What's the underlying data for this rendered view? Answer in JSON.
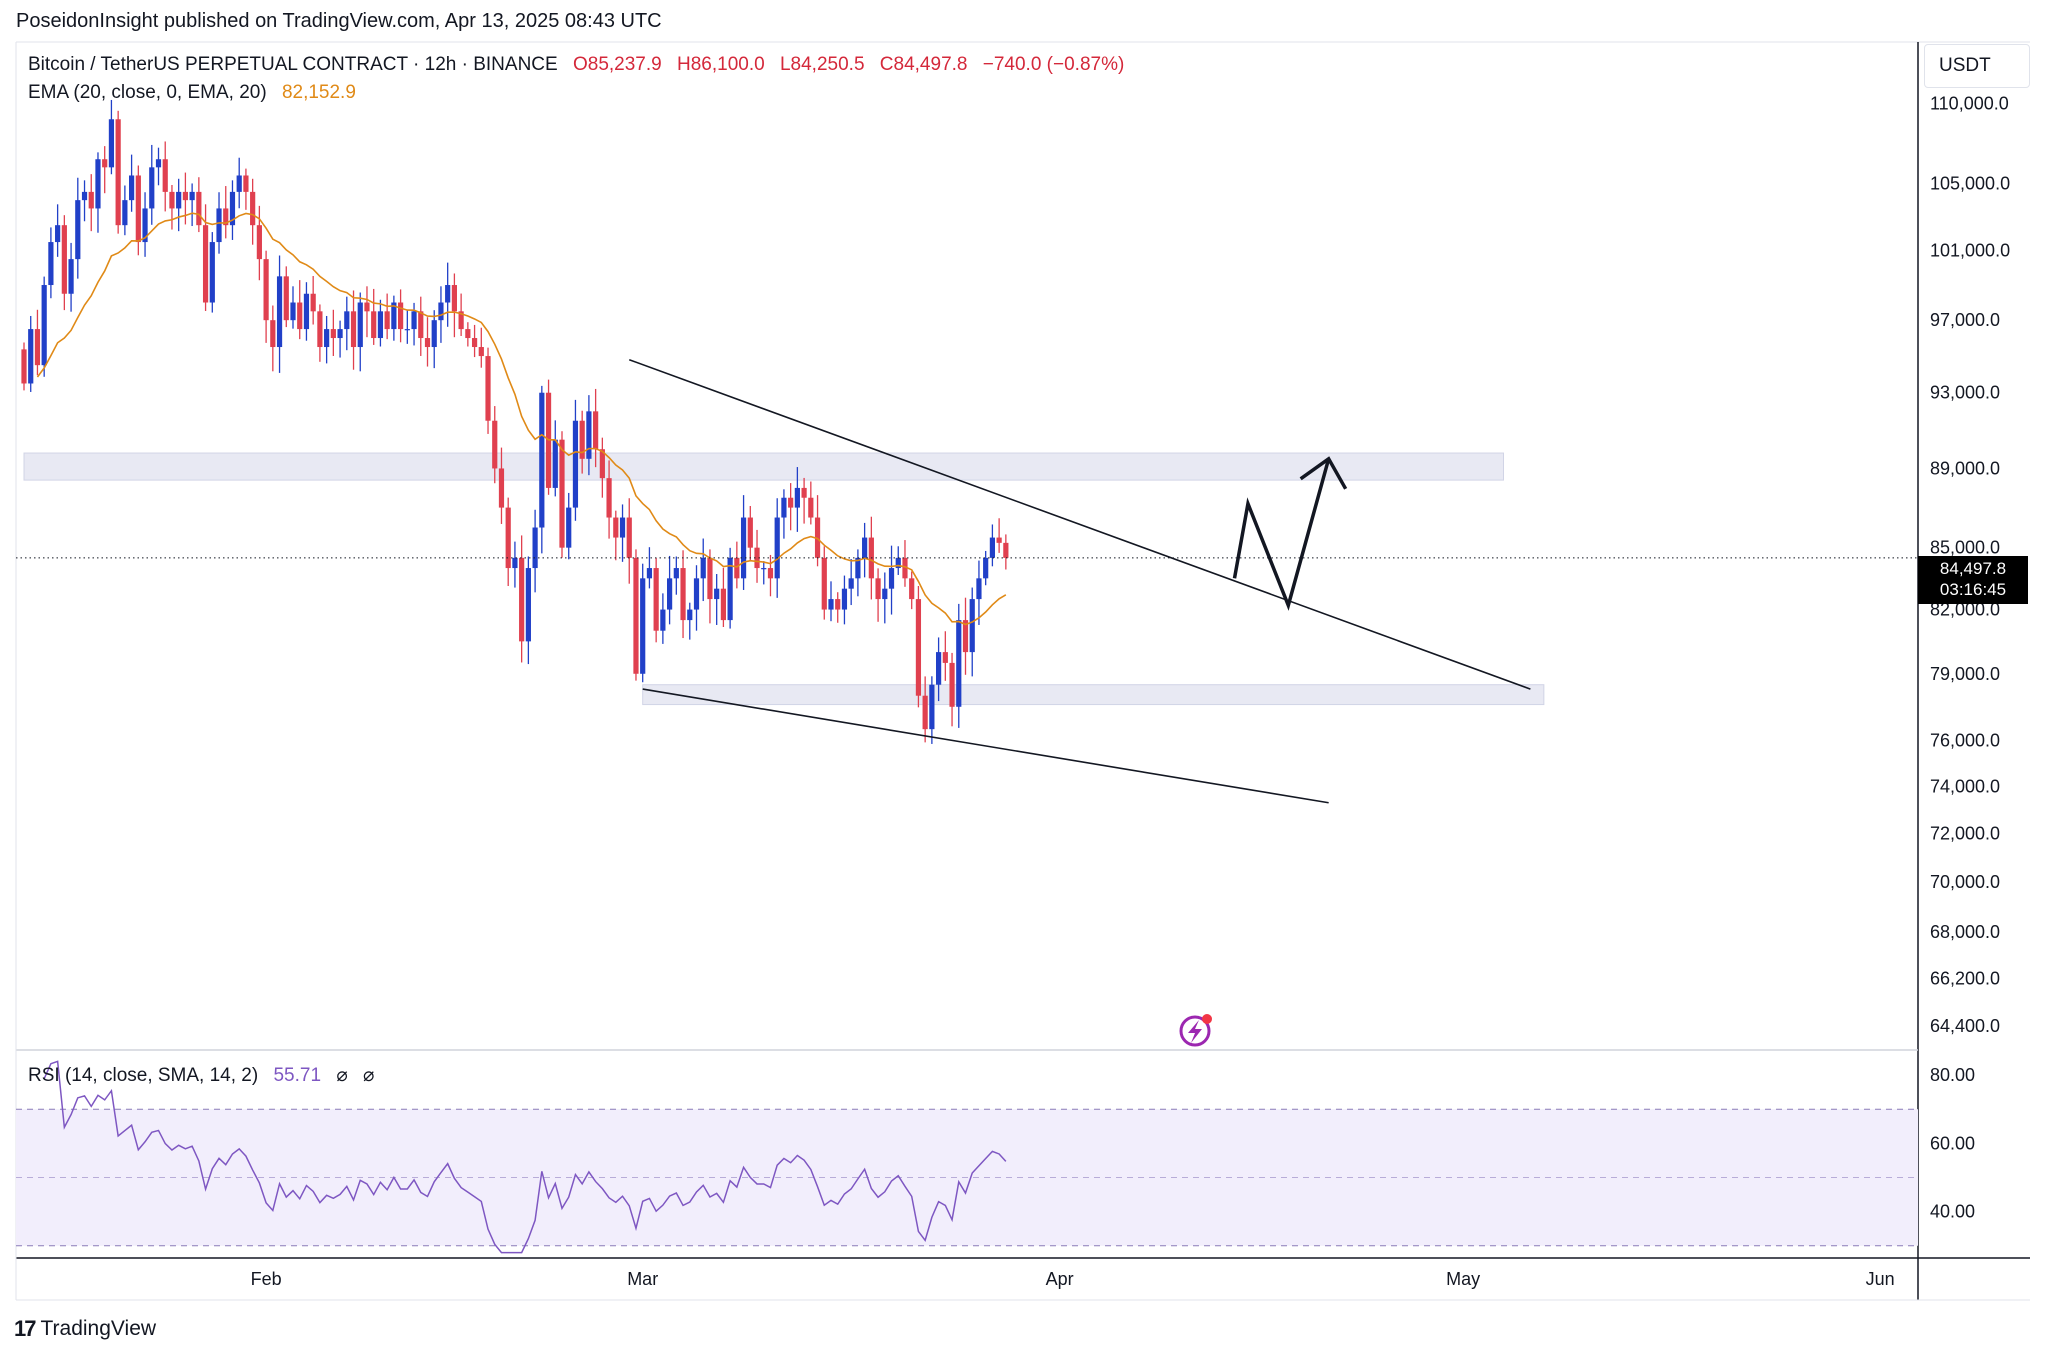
{
  "header": {
    "published": "PoseidonInsight published on TradingView.com, Apr 13, 2025 08:43 UTC"
  },
  "legend": {
    "symbol": "Bitcoin / TetherUS PERPETUAL CONTRACT · 12h · BINANCE",
    "open": "O85,237.9",
    "high": "H86,100.0",
    "low": "L84,250.5",
    "close": "C84,497.8",
    "change": "−740.0 (−0.87%)",
    "ema_label": "EMA (20, close, 0, EMA, 20)",
    "ema_value": "82,152.9",
    "rsi_label": "RSI (14, close, SMA, 14, 2)",
    "rsi_value": "55.71",
    "rsi_na1": "⌀",
    "rsi_na2": "⌀"
  },
  "currency": "USDT",
  "price_tag": {
    "price": "84,497.8",
    "countdown": "03:16:45"
  },
  "footer": {
    "brand": "TradingView",
    "mark": "17"
  },
  "colors": {
    "up": "#2140c8",
    "down": "#e0404f",
    "ema": "#e08a17",
    "rsi": "#7e57c2",
    "zone": "#e8e9f3",
    "rsi_band": "#f2eefc"
  },
  "icons": {
    "flash": "lightning-icon"
  },
  "chart_data": [
    {
      "type": "candlestick",
      "title": "Bitcoin / TetherUS PERPETUAL CONTRACT · 12h · BINANCE",
      "timeframe": "12h",
      "x_ticks": [
        "Feb",
        "Mar",
        "Apr",
        "May",
        "Jun"
      ],
      "y_ticks": [
        110000,
        105000,
        101000,
        97000,
        93000,
        89000,
        85000,
        82000,
        79000,
        76000,
        74000,
        72000,
        70000,
        68000,
        66200,
        64400
      ],
      "y_tick_labels": [
        "110,000.0",
        "105,000.0",
        "101,000.0",
        "97,000.0",
        "93,000.0",
        "89,000.0",
        "85,000.0",
        "82,000.0",
        "79,000.0",
        "76,000.0",
        "74,000.0",
        "72,000.0",
        "70,000.0",
        "68,000.0",
        "66,200.0",
        "64,400.0"
      ],
      "y_scale": "log",
      "ylim": [
        63500,
        114000
      ],
      "first_date": "2025-01-14",
      "candle_closes": [
        93500,
        96500,
        94500,
        99000,
        101500,
        102500,
        98500,
        100500,
        104000,
        104500,
        103500,
        106500,
        106000,
        109000,
        102500,
        104000,
        105500,
        101500,
        103500,
        106000,
        106500,
        104500,
        103500,
        104500,
        104000,
        104500,
        102500,
        98000,
        101500,
        103500,
        102500,
        104500,
        105500,
        104500,
        102500,
        100500,
        97000,
        95500,
        99500,
        97000,
        98000,
        96500,
        98500,
        97500,
        95500,
        96500,
        96000,
        96500,
        97500,
        95500,
        98000,
        97500,
        96000,
        97500,
        96500,
        98000,
        96500,
        96500,
        97500,
        96000,
        95500,
        97000,
        98000,
        99000,
        97500,
        96500,
        96000,
        95500,
        95000,
        91500,
        89000,
        87000,
        84000,
        84500,
        80500,
        84000,
        86000,
        93000,
        88000,
        90500,
        85000,
        87000,
        91500,
        89500,
        92000,
        90000,
        88500,
        86500,
        85500,
        86500,
        84500,
        79000,
        83500,
        84000,
        81000,
        82000,
        83500,
        84000,
        81500,
        82000,
        83500,
        84500,
        82500,
        83000,
        81500,
        84500,
        83500,
        86500,
        85000,
        84000,
        84000,
        83500,
        86500,
        87500,
        87000,
        88000,
        87500,
        86500,
        84500,
        82000,
        82500,
        82000,
        83000,
        83500,
        84500,
        85500,
        83500,
        82500,
        83000,
        84000,
        84500,
        83500,
        82500,
        78000,
        76500,
        78500,
        80000,
        79500,
        77500,
        81500,
        80000,
        82500,
        83500,
        84500,
        85500,
        85237.9,
        84497.8
      ],
      "ema_last": 82152.9,
      "zones": [
        {
          "from_date": "2025-01-14",
          "to_date": "2025-05-04",
          "low": 88400,
          "high": 89800
        },
        {
          "from_date": "2025-03-01",
          "to_date": "2025-05-07",
          "low": 77600,
          "high": 78500
        }
      ],
      "trendlines": [
        {
          "from": [
            "2025-02-28",
            94800
          ],
          "to": [
            "2025-05-06",
            78300
          ]
        },
        {
          "from": [
            "2025-03-01",
            78300
          ],
          "to": [
            "2025-04-21",
            73300
          ]
        }
      ],
      "projection": [
        [
          "2025-04-14",
          83500
        ],
        [
          "2025-04-15",
          87200
        ],
        [
          "2025-04-18",
          82200
        ],
        [
          "2025-04-21",
          89500
        ]
      ],
      "current_price": 84497.8
    },
    {
      "type": "line",
      "title": "RSI (14, close, SMA, 14, 2)",
      "y_ticks": [
        80,
        60,
        40
      ],
      "y_tick_labels": [
        "80.00",
        "60.00",
        "40.00"
      ],
      "ylim": [
        27,
        85
      ],
      "band": [
        30,
        70
      ],
      "midline": 50,
      "last": 55.71
    }
  ]
}
